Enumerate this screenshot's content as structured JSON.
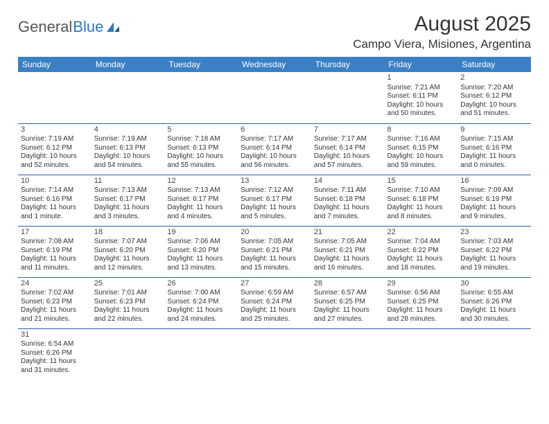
{
  "logo": {
    "text1": "General",
    "text2": "Blue"
  },
  "title": "August 2025",
  "location": "Campo Viera, Misiones, Argentina",
  "colors": {
    "header_bg": "#3a80c5",
    "header_text": "#ffffff",
    "cell_border": "#2b5f9e",
    "body_text": "#333333",
    "logo_gray": "#555555",
    "logo_blue": "#2b78c5"
  },
  "day_headers": [
    "Sunday",
    "Monday",
    "Tuesday",
    "Wednesday",
    "Thursday",
    "Friday",
    "Saturday"
  ],
  "weeks": [
    [
      null,
      null,
      null,
      null,
      null,
      {
        "n": "1",
        "sr": "Sunrise: 7:21 AM",
        "ss": "Sunset: 6:11 PM",
        "dl1": "Daylight: 10 hours",
        "dl2": "and 50 minutes."
      },
      {
        "n": "2",
        "sr": "Sunrise: 7:20 AM",
        "ss": "Sunset: 6:12 PM",
        "dl1": "Daylight: 10 hours",
        "dl2": "and 51 minutes."
      }
    ],
    [
      {
        "n": "3",
        "sr": "Sunrise: 7:19 AM",
        "ss": "Sunset: 6:12 PM",
        "dl1": "Daylight: 10 hours",
        "dl2": "and 52 minutes."
      },
      {
        "n": "4",
        "sr": "Sunrise: 7:19 AM",
        "ss": "Sunset: 6:13 PM",
        "dl1": "Daylight: 10 hours",
        "dl2": "and 54 minutes."
      },
      {
        "n": "5",
        "sr": "Sunrise: 7:18 AM",
        "ss": "Sunset: 6:13 PM",
        "dl1": "Daylight: 10 hours",
        "dl2": "and 55 minutes."
      },
      {
        "n": "6",
        "sr": "Sunrise: 7:17 AM",
        "ss": "Sunset: 6:14 PM",
        "dl1": "Daylight: 10 hours",
        "dl2": "and 56 minutes."
      },
      {
        "n": "7",
        "sr": "Sunrise: 7:17 AM",
        "ss": "Sunset: 6:14 PM",
        "dl1": "Daylight: 10 hours",
        "dl2": "and 57 minutes."
      },
      {
        "n": "8",
        "sr": "Sunrise: 7:16 AM",
        "ss": "Sunset: 6:15 PM",
        "dl1": "Daylight: 10 hours",
        "dl2": "and 59 minutes."
      },
      {
        "n": "9",
        "sr": "Sunrise: 7:15 AM",
        "ss": "Sunset: 6:16 PM",
        "dl1": "Daylight: 11 hours",
        "dl2": "and 0 minutes."
      }
    ],
    [
      {
        "n": "10",
        "sr": "Sunrise: 7:14 AM",
        "ss": "Sunset: 6:16 PM",
        "dl1": "Daylight: 11 hours",
        "dl2": "and 1 minute."
      },
      {
        "n": "11",
        "sr": "Sunrise: 7:13 AM",
        "ss": "Sunset: 6:17 PM",
        "dl1": "Daylight: 11 hours",
        "dl2": "and 3 minutes."
      },
      {
        "n": "12",
        "sr": "Sunrise: 7:13 AM",
        "ss": "Sunset: 6:17 PM",
        "dl1": "Daylight: 11 hours",
        "dl2": "and 4 minutes."
      },
      {
        "n": "13",
        "sr": "Sunrise: 7:12 AM",
        "ss": "Sunset: 6:17 PM",
        "dl1": "Daylight: 11 hours",
        "dl2": "and 5 minutes."
      },
      {
        "n": "14",
        "sr": "Sunrise: 7:11 AM",
        "ss": "Sunset: 6:18 PM",
        "dl1": "Daylight: 11 hours",
        "dl2": "and 7 minutes."
      },
      {
        "n": "15",
        "sr": "Sunrise: 7:10 AM",
        "ss": "Sunset: 6:18 PM",
        "dl1": "Daylight: 11 hours",
        "dl2": "and 8 minutes."
      },
      {
        "n": "16",
        "sr": "Sunrise: 7:09 AM",
        "ss": "Sunset: 6:19 PM",
        "dl1": "Daylight: 11 hours",
        "dl2": "and 9 minutes."
      }
    ],
    [
      {
        "n": "17",
        "sr": "Sunrise: 7:08 AM",
        "ss": "Sunset: 6:19 PM",
        "dl1": "Daylight: 11 hours",
        "dl2": "and 11 minutes."
      },
      {
        "n": "18",
        "sr": "Sunrise: 7:07 AM",
        "ss": "Sunset: 6:20 PM",
        "dl1": "Daylight: 11 hours",
        "dl2": "and 12 minutes."
      },
      {
        "n": "19",
        "sr": "Sunrise: 7:06 AM",
        "ss": "Sunset: 6:20 PM",
        "dl1": "Daylight: 11 hours",
        "dl2": "and 13 minutes."
      },
      {
        "n": "20",
        "sr": "Sunrise: 7:05 AM",
        "ss": "Sunset: 6:21 PM",
        "dl1": "Daylight: 11 hours",
        "dl2": "and 15 minutes."
      },
      {
        "n": "21",
        "sr": "Sunrise: 7:05 AM",
        "ss": "Sunset: 6:21 PM",
        "dl1": "Daylight: 11 hours",
        "dl2": "and 16 minutes."
      },
      {
        "n": "22",
        "sr": "Sunrise: 7:04 AM",
        "ss": "Sunset: 6:22 PM",
        "dl1": "Daylight: 11 hours",
        "dl2": "and 18 minutes."
      },
      {
        "n": "23",
        "sr": "Sunrise: 7:03 AM",
        "ss": "Sunset: 6:22 PM",
        "dl1": "Daylight: 11 hours",
        "dl2": "and 19 minutes."
      }
    ],
    [
      {
        "n": "24",
        "sr": "Sunrise: 7:02 AM",
        "ss": "Sunset: 6:23 PM",
        "dl1": "Daylight: 11 hours",
        "dl2": "and 21 minutes."
      },
      {
        "n": "25",
        "sr": "Sunrise: 7:01 AM",
        "ss": "Sunset: 6:23 PM",
        "dl1": "Daylight: 11 hours",
        "dl2": "and 22 minutes."
      },
      {
        "n": "26",
        "sr": "Sunrise: 7:00 AM",
        "ss": "Sunset: 6:24 PM",
        "dl1": "Daylight: 11 hours",
        "dl2": "and 24 minutes."
      },
      {
        "n": "27",
        "sr": "Sunrise: 6:59 AM",
        "ss": "Sunset: 6:24 PM",
        "dl1": "Daylight: 11 hours",
        "dl2": "and 25 minutes."
      },
      {
        "n": "28",
        "sr": "Sunrise: 6:57 AM",
        "ss": "Sunset: 6:25 PM",
        "dl1": "Daylight: 11 hours",
        "dl2": "and 27 minutes."
      },
      {
        "n": "29",
        "sr": "Sunrise: 6:56 AM",
        "ss": "Sunset: 6:25 PM",
        "dl1": "Daylight: 11 hours",
        "dl2": "and 28 minutes."
      },
      {
        "n": "30",
        "sr": "Sunrise: 6:55 AM",
        "ss": "Sunset: 6:26 PM",
        "dl1": "Daylight: 11 hours",
        "dl2": "and 30 minutes."
      }
    ],
    [
      {
        "n": "31",
        "sr": "Sunrise: 6:54 AM",
        "ss": "Sunset: 6:26 PM",
        "dl1": "Daylight: 11 hours",
        "dl2": "and 31 minutes."
      },
      null,
      null,
      null,
      null,
      null,
      null
    ]
  ]
}
